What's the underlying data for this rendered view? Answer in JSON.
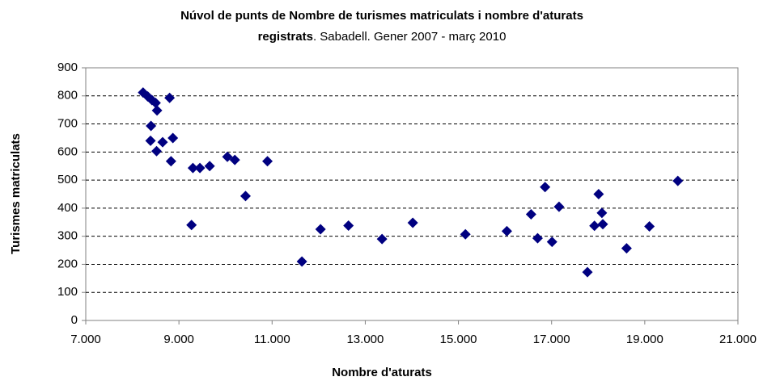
{
  "chart_data": {
    "type": "scatter",
    "title": [
      "Núvol de punts de Nombre de turismes matriculats i nombre d'aturats",
      "registrats",
      ". Sabadell. Gener 2007 - març 2010"
    ],
    "x_label": "Nombre d'aturats",
    "y_label": "Turismes matriculats",
    "x": [
      8230,
      8330,
      8420,
      8500,
      8530,
      8800,
      8400,
      8390,
      8520,
      8650,
      8830,
      8870,
      9270,
      9300,
      9450,
      9660,
      10040,
      10200,
      10430,
      10900,
      11640,
      12040,
      12640,
      13360,
      14020,
      15150,
      16040,
      16560,
      16700,
      16860,
      17010,
      17160,
      17770,
      17920,
      18010,
      18080,
      18100,
      18610,
      19100,
      19710
    ],
    "values": [
      812,
      798,
      785,
      775,
      748,
      793,
      693,
      640,
      603,
      635,
      567,
      650,
      340,
      543,
      543,
      550,
      583,
      572,
      443,
      567,
      210,
      325,
      338,
      290,
      348,
      307,
      318,
      378,
      293,
      475,
      280,
      405,
      172,
      337,
      450,
      383,
      343,
      257,
      335,
      497
    ],
    "color": "#000080",
    "xlim": [
      7000,
      21000
    ],
    "xticks": [
      {
        "value": 7000,
        "label": "7.000"
      },
      {
        "value": 9000,
        "label": "9.000"
      },
      {
        "value": 11000,
        "label": "11.000"
      },
      {
        "value": 13000,
        "label": "13.000"
      },
      {
        "value": 15000,
        "label": "15.000"
      },
      {
        "value": 17000,
        "label": "17.000"
      },
      {
        "value": 19000,
        "label": "19.000"
      },
      {
        "value": 21000,
        "label": "21.000"
      }
    ],
    "ylim": [
      0,
      900
    ],
    "yticks": [
      0,
      100,
      200,
      300,
      400,
      500,
      600,
      700,
      800,
      900
    ],
    "grid": true
  }
}
